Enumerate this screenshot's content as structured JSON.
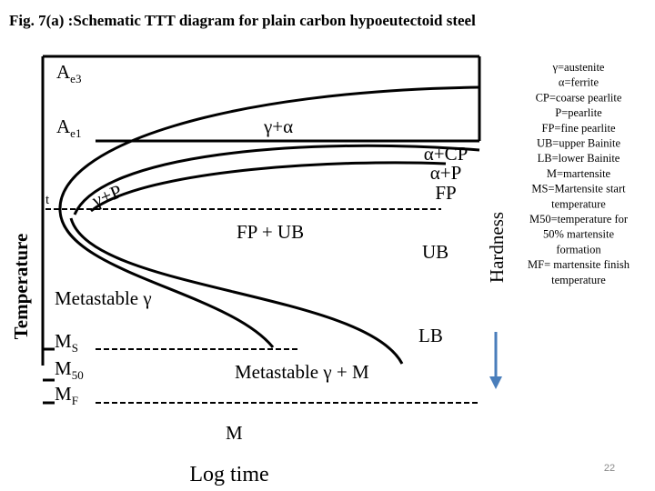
{
  "title": "Fig. 7(a) :Schematic TTT diagram for plain carbon hypoeutectoid steel",
  "axis_labels": {
    "y": "Temperature",
    "x": "Log time",
    "hardness": "Hardness"
  },
  "labels": {
    "ae3": {
      "base": "A",
      "sub": "e3"
    },
    "ae1": {
      "base": "A",
      "sub": "e1"
    },
    "gamma_alpha": "γ+α",
    "alpha_cp": "α+CP",
    "alpha_p": "α+P",
    "fp": "FP",
    "gamma_p": "γ+P",
    "t": "t",
    "fp_ub": "FP + UB",
    "ub": "UB",
    "metastable_gamma": "Metastable γ",
    "lb": "LB",
    "ms": {
      "base": "M",
      "sub": "S"
    },
    "m50": {
      "base": "M",
      "sub": "50"
    },
    "mf": {
      "base": "M",
      "sub": "F"
    },
    "metastable_gamma_m": "Metastable  γ + M",
    "m": "M"
  },
  "legend": [
    "γ=austenite",
    "α=ferrite",
    "CP=coarse pearlite",
    "P=pearlite",
    "FP=fine pearlite",
    "UB=upper Bainite",
    "LB=lower Bainite",
    "M=martensite",
    "MS=Martensite start",
    "temperature",
    "M50=temperature for",
    "50% martensite",
    "formation",
    "MF= martensite finish",
    "temperature"
  ],
  "page_number": "22"
}
